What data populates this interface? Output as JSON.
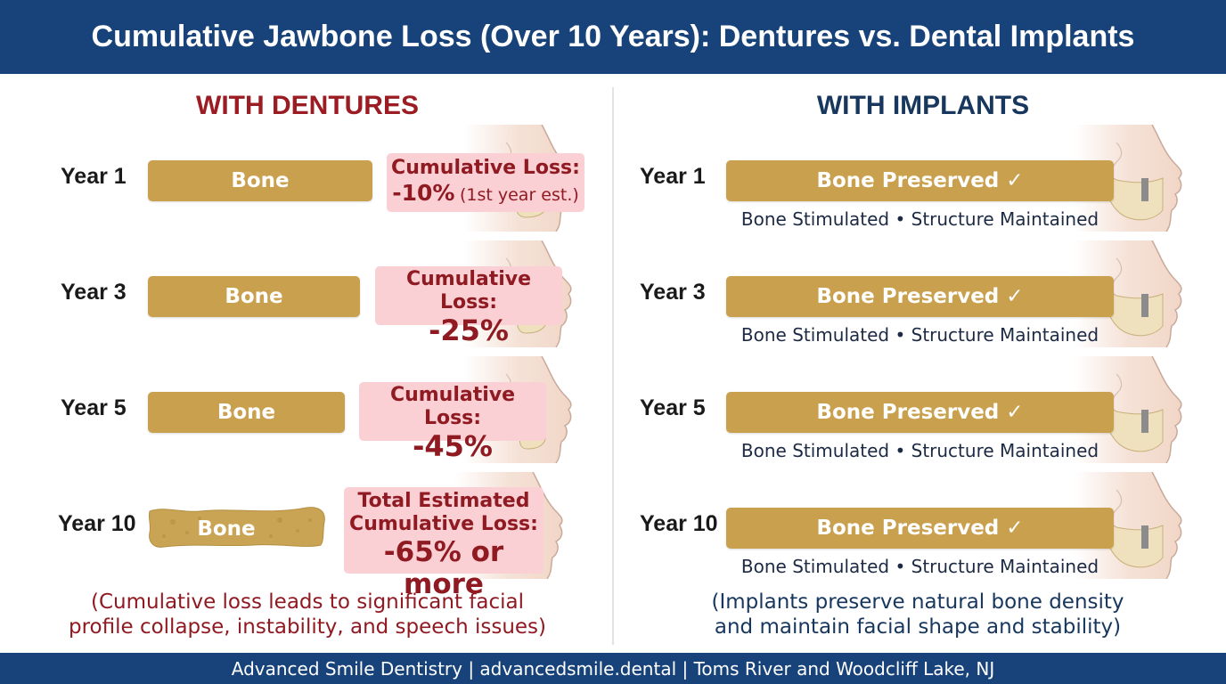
{
  "title": "Cumulative Jawbone Loss (Over 10 Years): Dentures vs. Dental Implants",
  "footer": "Advanced Smile Dentistry | advancedsmile.dental | Toms River and Woodcliff Lake, NJ",
  "colors": {
    "header": "#17437a",
    "bone": "#c9a04e",
    "loss_bg": "#fbd0d4",
    "loss_text": "#8f1a22",
    "dentures_title": "#9b1c22",
    "implants_title": "#17375e"
  },
  "dentures": {
    "title": "WITH DENTURES",
    "rows": [
      {
        "year": "Year 1",
        "bone_label": "Bone",
        "loss_label": "Cumulative Loss:",
        "loss_value": "-10%",
        "loss_note": "(1st year est.)"
      },
      {
        "year": "Year 3",
        "bone_label": "Bone",
        "loss_label": "Cumulative Loss:",
        "loss_value": "-25%"
      },
      {
        "year": "Year 5",
        "bone_label": "Bone",
        "loss_label": "Cumulative Loss:",
        "loss_value": "-45%"
      },
      {
        "year": "Year 10",
        "bone_label": "Bone",
        "loss_label_1": "Total Estimated",
        "loss_label_2": "Cumulative Loss:",
        "loss_value": "-65% or more"
      }
    ],
    "caption_1": "(Cumulative loss leads to significant facial",
    "caption_2": "profile collapse, instability, and speech issues)"
  },
  "implants": {
    "title": "WITH IMPLANTS",
    "rows": [
      {
        "year": "Year 1",
        "bone_label": "Bone Preserved ✓",
        "sub": "Bone Stimulated • Structure Maintained"
      },
      {
        "year": "Year 3",
        "bone_label": "Bone Preserved ✓",
        "sub": "Bone Stimulated • Structure Maintained"
      },
      {
        "year": "Year 5",
        "bone_label": "Bone Preserved ✓",
        "sub": "Bone Stimulated • Structure Maintained"
      },
      {
        "year": "Year 10",
        "bone_label": "Bone Preserved ✓",
        "sub": "Bone Stimulated • Structure Maintained"
      }
    ],
    "caption_1": "(Implants preserve natural bone density",
    "caption_2": "and maintain facial shape and stability)"
  }
}
